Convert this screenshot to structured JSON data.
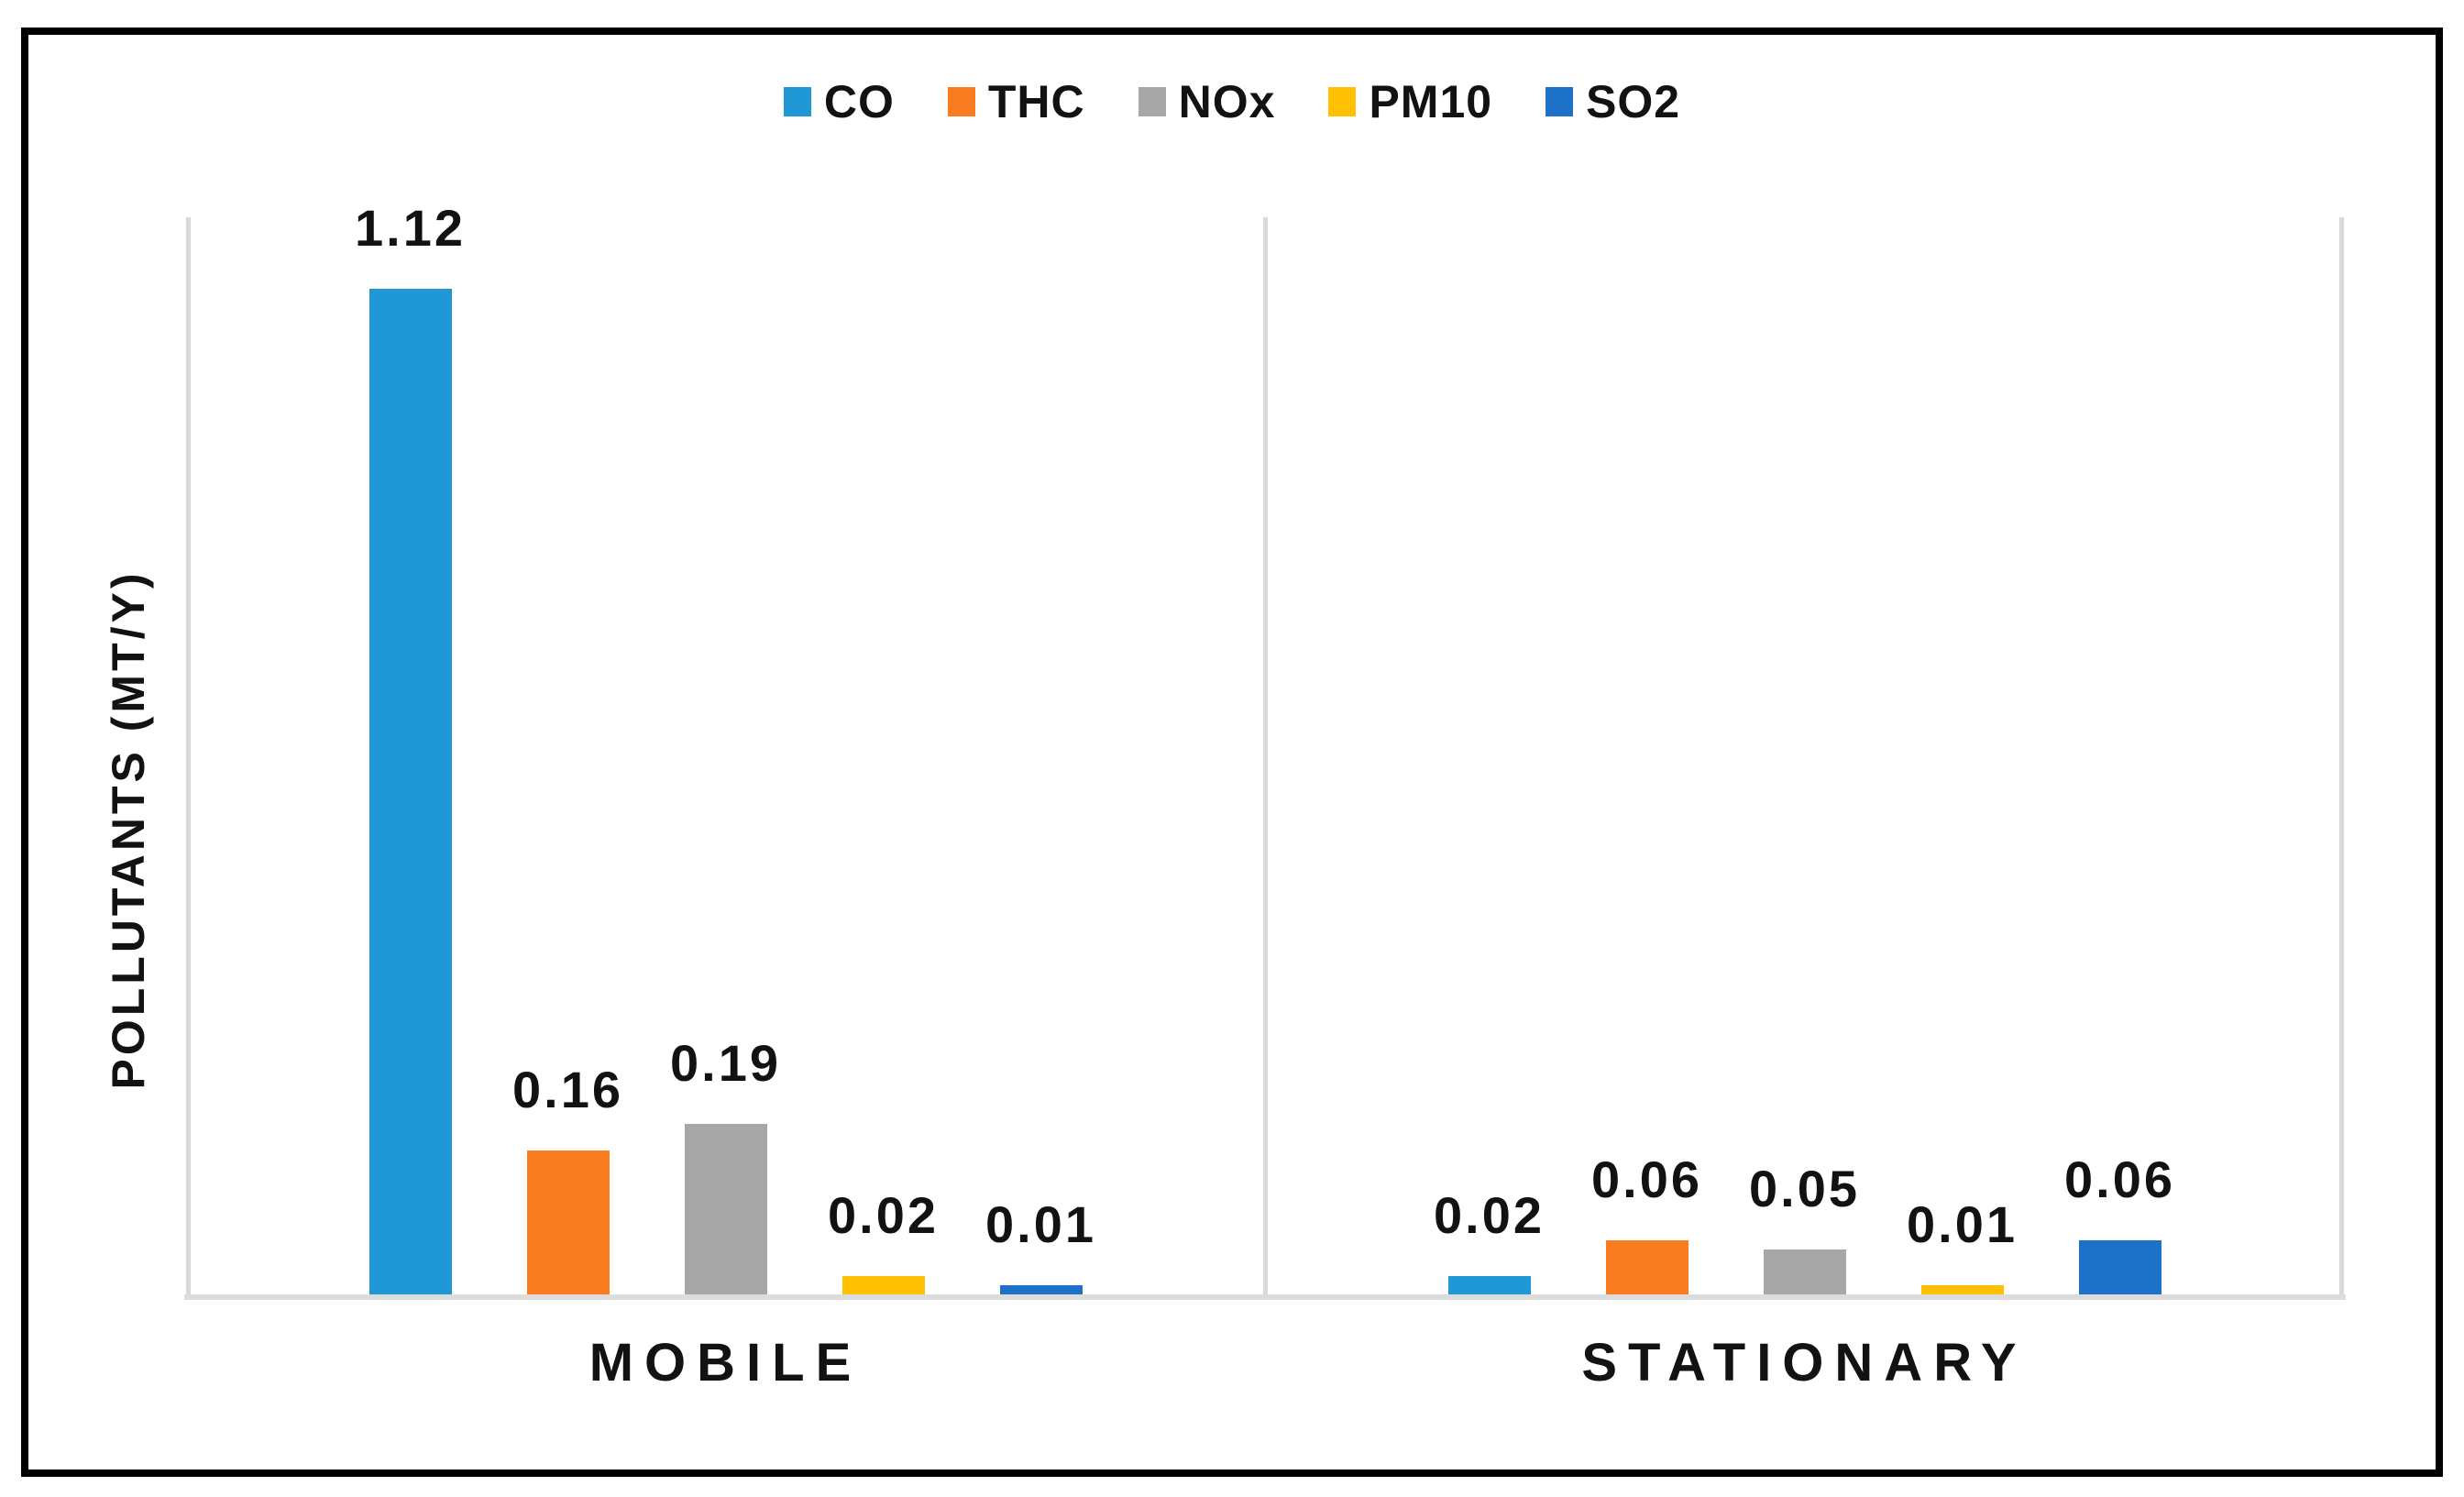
{
  "chart_data": {
    "type": "bar",
    "title": "",
    "categories": [
      "MOBILE",
      "STATIONARY"
    ],
    "series": [
      {
        "name": "CO",
        "color": "#2098D5",
        "values": [
          1.12,
          0.02
        ]
      },
      {
        "name": "THC",
        "color": "#FA7C21",
        "values": [
          0.16,
          0.06
        ]
      },
      {
        "name": "NOx",
        "color": "#A7A7A7",
        "values": [
          0.19,
          0.05
        ]
      },
      {
        "name": "PM10",
        "color": "#FFC001",
        "values": [
          0.02,
          0.01
        ]
      },
      {
        "name": "SO2",
        "color": "#1D71C6",
        "values": [
          0.01,
          0.06
        ]
      }
    ],
    "xlabel": "",
    "ylabel": "POLLUTANTS (MT/Y)",
    "ylim": [
      0,
      1.2
    ],
    "grid": false,
    "legend_position": "top",
    "data_labels": true,
    "data_label_format": "0.00",
    "mobile_labels": [
      "1.12",
      "0.16",
      "0.19",
      "0.02",
      "0.01"
    ],
    "stationary_labels": [
      "0.02",
      "0.06",
      "0.05",
      "0.01",
      "0.06"
    ]
  },
  "colors": {
    "axis_line": "#D9D9D9",
    "baseline": "#DCDCDC",
    "text": "#121212",
    "frame_border": "#000000",
    "background": "#FFFFFF"
  }
}
